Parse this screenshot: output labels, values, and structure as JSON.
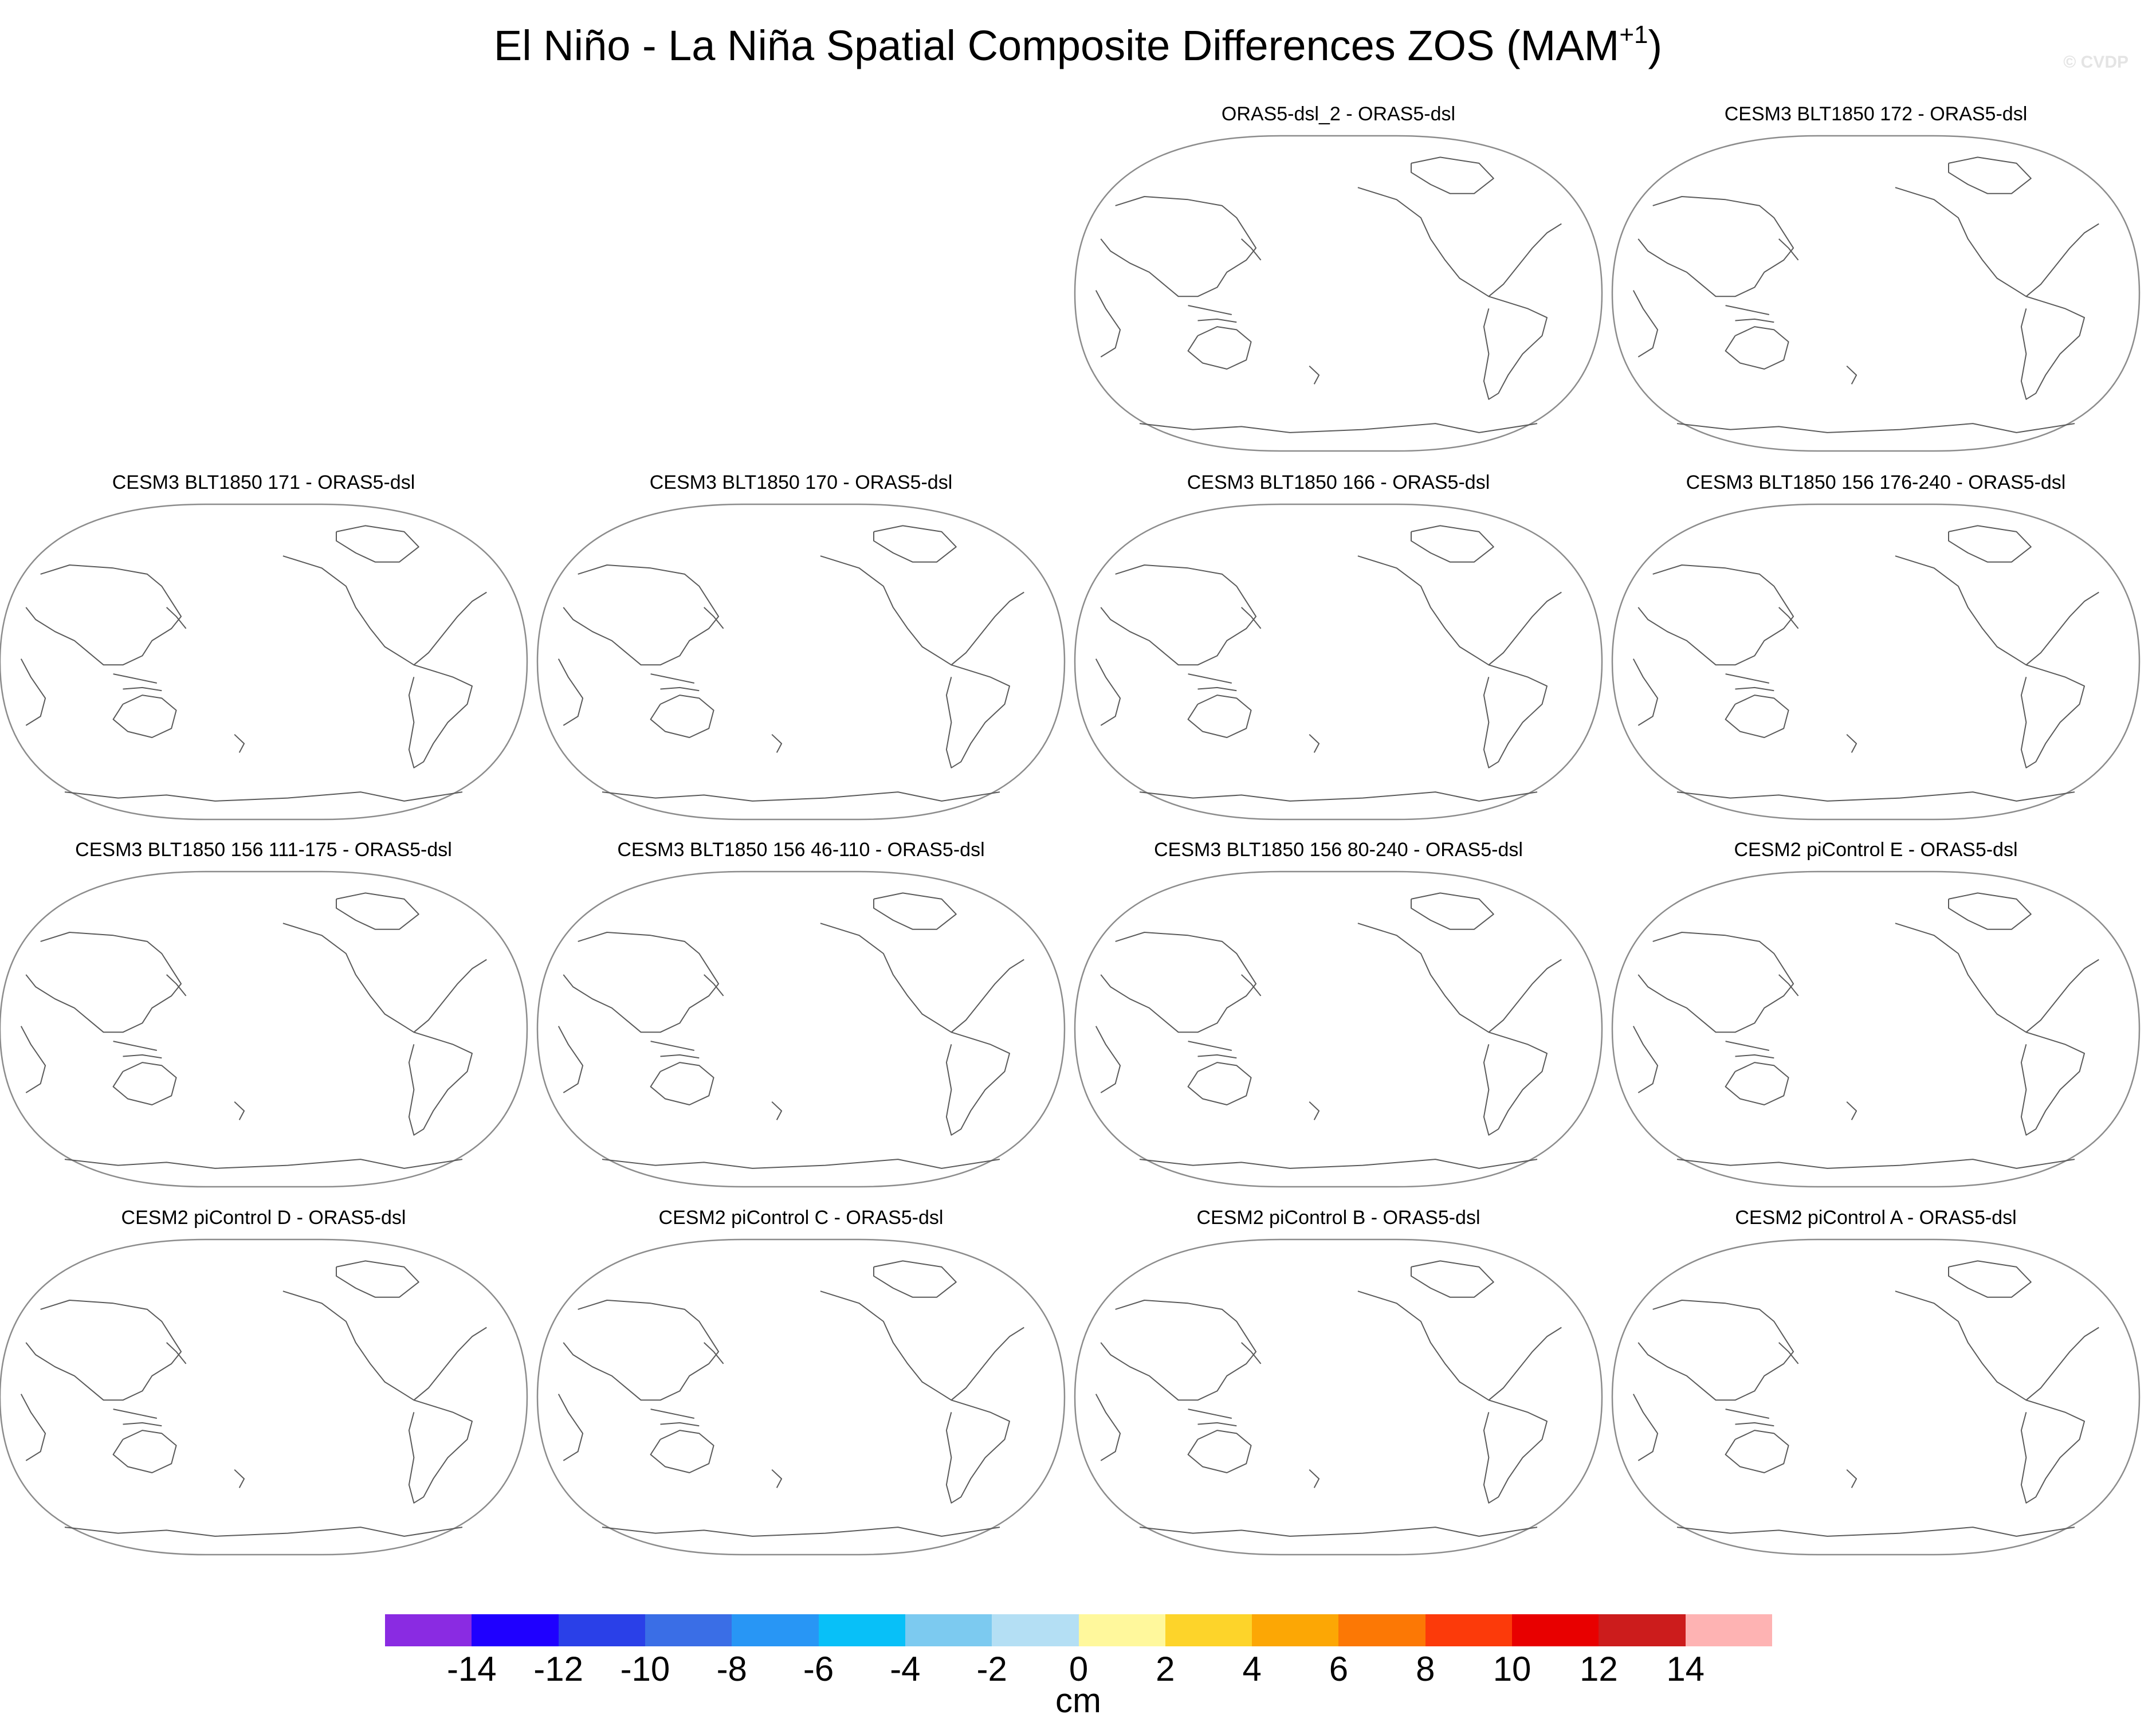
{
  "title": {
    "main": "El Niño - La Niña Spatial Composite Differences ZOS (MAM",
    "superscript": "+1",
    "close": ")"
  },
  "watermark": "© CVDP",
  "panels": [
    {
      "title": "ORAS5-dsl_2 - ORAS5-dsl"
    },
    {
      "title": "CESM3 BLT1850 172 - ORAS5-dsl"
    },
    {
      "title": "CESM3 BLT1850 171 - ORAS5-dsl"
    },
    {
      "title": "CESM3 BLT1850 170 - ORAS5-dsl"
    },
    {
      "title": "CESM3 BLT1850 166 - ORAS5-dsl"
    },
    {
      "title": "CESM3 BLT1850 156 176-240 - ORAS5-dsl"
    },
    {
      "title": "CESM3 BLT1850 156 111-175 - ORAS5-dsl"
    },
    {
      "title": "CESM3 BLT1850 156 46-110 - ORAS5-dsl"
    },
    {
      "title": "CESM3 BLT1850 156 80-240 - ORAS5-dsl"
    },
    {
      "title": "CESM2 piControl E - ORAS5-dsl"
    },
    {
      "title": "CESM2 piControl D - ORAS5-dsl"
    },
    {
      "title": "CESM2 piControl C - ORAS5-dsl"
    },
    {
      "title": "CESM2 piControl B - ORAS5-dsl"
    },
    {
      "title": "CESM2 piControl A - ORAS5-dsl"
    }
  ],
  "colorbar": {
    "units": "cm",
    "labels": [
      "-14",
      "-12",
      "-10",
      "-8",
      "-6",
      "-4",
      "-2",
      "0",
      "2",
      "4",
      "6",
      "8",
      "10",
      "12",
      "14"
    ],
    "colors": [
      "#8a2be2",
      "#1f00ff",
      "#2a40e8",
      "#3a6ee6",
      "#2896f5",
      "#08c0f8",
      "#7ccaf0",
      "#b4dff4",
      "#fff89c",
      "#fdd42a",
      "#fca705",
      "#fc7805",
      "#fc3a0a",
      "#e80000",
      "#cc1c1c",
      "#feb3b3"
    ]
  }
}
